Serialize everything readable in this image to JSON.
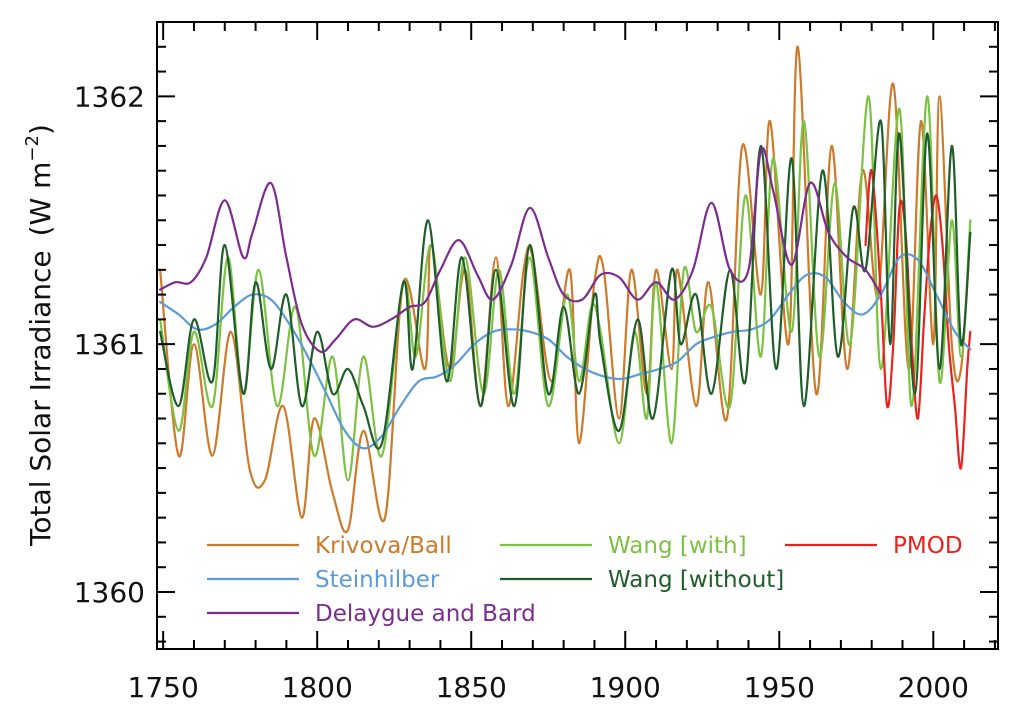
{
  "chart_data": {
    "type": "line",
    "title": "",
    "xlabel": "",
    "ylabel": "Total Solar Irradiance",
    "ylabel_unit_base": "(W m",
    "ylabel_unit_exp": "−2",
    "ylabel_unit_close": ")",
    "xlim": [
      1748,
      2021
    ],
    "ylim": [
      1359.77,
      1362.3
    ],
    "xticks": [
      1750,
      1800,
      1850,
      1900,
      1950,
      2000
    ],
    "xtick_labels": [
      "1750",
      "1800",
      "1850",
      "1900",
      "1950",
      "2000"
    ],
    "yticks": [
      1360,
      1361,
      1362
    ],
    "ytick_labels": [
      "1360",
      "1361",
      "1362"
    ],
    "grid": false,
    "legend_position": "bottom",
    "series": [
      {
        "name": "Krivova/Ball",
        "color": "#CD7A2A",
        "x": [
          1749,
          1755,
          1760,
          1766,
          1772,
          1778,
          1783,
          1789,
          1795,
          1799,
          1805,
          1810,
          1815,
          1822,
          1828,
          1835,
          1837,
          1843,
          1848,
          1853,
          1858,
          1862,
          1867,
          1870,
          1876,
          1882,
          1885,
          1890,
          1893,
          1898,
          1902,
          1907,
          1910,
          1915,
          1917,
          1923,
          1927,
          1933,
          1938,
          1944,
          1947,
          1953,
          1956,
          1962,
          1967,
          1972,
          1977,
          1982,
          1987,
          1992,
          1996,
          2000,
          2002,
          2006,
          2009,
          2012
        ],
        "y": [
          1361.3,
          1360.55,
          1361.0,
          1360.55,
          1361.05,
          1360.5,
          1360.45,
          1360.75,
          1360.3,
          1360.7,
          1360.4,
          1360.25,
          1360.65,
          1360.3,
          1361.25,
          1360.9,
          1361.4,
          1360.9,
          1361.3,
          1360.75,
          1361.35,
          1360.75,
          1361.3,
          1361.35,
          1360.85,
          1361.3,
          1360.6,
          1361.25,
          1361.3,
          1360.7,
          1361.3,
          1360.8,
          1361.3,
          1360.9,
          1361.3,
          1360.75,
          1361.25,
          1360.7,
          1361.8,
          1361.2,
          1361.9,
          1361.0,
          1362.2,
          1360.8,
          1361.8,
          1360.9,
          1361.7,
          1361.2,
          1362.05,
          1360.9,
          1361.9,
          1361.0,
          1362.0,
          1361.0,
          1360.9,
          1361.45
        ]
      },
      {
        "name": "Wang [with]",
        "color": "#7CC242",
        "x": [
          1749,
          1755,
          1760,
          1766,
          1771,
          1776,
          1781,
          1787,
          1793,
          1799,
          1805,
          1810,
          1815,
          1821,
          1828,
          1832,
          1837,
          1843,
          1848,
          1854,
          1859,
          1864,
          1869,
          1875,
          1881,
          1885,
          1889,
          1892,
          1898,
          1903,
          1907,
          1910,
          1915,
          1919,
          1923,
          1928,
          1934,
          1939,
          1944,
          1948,
          1954,
          1958,
          1963,
          1968,
          1973,
          1979,
          1983,
          1989,
          1993,
          1998,
          2002,
          2006,
          2009,
          2012
        ],
        "y": [
          1361.1,
          1360.65,
          1361.05,
          1360.75,
          1361.35,
          1360.8,
          1361.3,
          1360.75,
          1361.15,
          1360.55,
          1360.95,
          1360.45,
          1360.95,
          1360.55,
          1361.25,
          1360.95,
          1361.4,
          1360.85,
          1361.35,
          1360.8,
          1361.3,
          1360.8,
          1361.35,
          1360.75,
          1361.2,
          1360.85,
          1361.15,
          1361.05,
          1360.6,
          1361.05,
          1360.7,
          1361.25,
          1360.6,
          1361.3,
          1361.05,
          1361.15,
          1360.75,
          1361.6,
          1360.95,
          1361.75,
          1361.05,
          1361.9,
          1360.95,
          1361.65,
          1361.0,
          1362.0,
          1360.9,
          1361.95,
          1360.75,
          1362.0,
          1360.85,
          1361.5,
          1360.95,
          1361.5
        ]
      },
      {
        "name": "PMOD",
        "color": "#E8231E",
        "x": [
          1978,
          1980,
          1983,
          1985,
          1987,
          1989,
          1991,
          1993,
          1995,
          1997,
          1999,
          2001,
          2003,
          2005,
          2007,
          2009,
          2011,
          2012
        ],
        "y": [
          1361.4,
          1361.7,
          1361.2,
          1360.75,
          1361.0,
          1361.55,
          1361.45,
          1361.0,
          1360.7,
          1361.1,
          1361.45,
          1361.6,
          1361.4,
          1361.0,
          1360.75,
          1360.5,
          1360.9,
          1361.05
        ]
      },
      {
        "name": "Steinhilber",
        "color": "#5C9BD5",
        "x": [
          1749,
          1755,
          1761,
          1767,
          1773,
          1779,
          1785,
          1791,
          1797,
          1803,
          1809,
          1815,
          1821,
          1827,
          1833,
          1839,
          1845,
          1851,
          1857,
          1863,
          1869,
          1875,
          1881,
          1887,
          1893,
          1899,
          1905,
          1911,
          1917,
          1923,
          1929,
          1935,
          1941,
          1947,
          1953,
          1959,
          1965,
          1971,
          1977,
          1983,
          1989,
          1995,
          2001,
          2007,
          2012
        ],
        "y": [
          1361.17,
          1361.12,
          1361.06,
          1361.08,
          1361.15,
          1361.2,
          1361.18,
          1361.08,
          1360.95,
          1360.8,
          1360.65,
          1360.58,
          1360.63,
          1360.75,
          1360.85,
          1360.87,
          1360.92,
          1361.0,
          1361.05,
          1361.06,
          1361.05,
          1361.02,
          1360.95,
          1360.9,
          1360.87,
          1360.86,
          1360.88,
          1360.9,
          1360.93,
          1361.0,
          1361.03,
          1361.05,
          1361.06,
          1361.1,
          1361.2,
          1361.28,
          1361.27,
          1361.17,
          1361.12,
          1361.2,
          1361.35,
          1361.34,
          1361.2,
          1361.05,
          1360.98
        ]
      },
      {
        "name": "Wang [without]",
        "color": "#1F5E2A",
        "x": [
          1749,
          1755,
          1760,
          1766,
          1770,
          1776,
          1780,
          1785,
          1790,
          1795,
          1800,
          1805,
          1810,
          1815,
          1821,
          1828,
          1831,
          1836,
          1842,
          1847,
          1853,
          1858,
          1864,
          1869,
          1875,
          1880,
          1885,
          1890,
          1892,
          1898,
          1904,
          1909,
          1915,
          1918,
          1923,
          1928,
          1934,
          1939,
          1944,
          1949,
          1954,
          1958,
          1964,
          1969,
          1974,
          1978,
          1983,
          1986,
          1989,
          1994,
          1998,
          2002,
          2006,
          2009,
          2012
        ],
        "y": [
          1361.05,
          1360.75,
          1361.1,
          1360.85,
          1361.4,
          1360.8,
          1361.25,
          1360.9,
          1361.2,
          1360.75,
          1361.05,
          1360.8,
          1360.9,
          1360.75,
          1360.6,
          1361.25,
          1360.9,
          1361.5,
          1360.85,
          1361.35,
          1360.75,
          1361.3,
          1360.75,
          1361.4,
          1360.8,
          1361.15,
          1360.8,
          1361.2,
          1361.0,
          1360.65,
          1361.1,
          1360.7,
          1361.3,
          1361.0,
          1361.2,
          1360.8,
          1361.3,
          1360.85,
          1361.8,
          1360.9,
          1361.75,
          1360.75,
          1361.7,
          1360.95,
          1361.55,
          1361.3,
          1361.9,
          1361.0,
          1361.85,
          1360.8,
          1361.85,
          1360.9,
          1361.8,
          1361.0,
          1361.45
        ]
      },
      {
        "name": "Delaygue and Bard",
        "color": "#7B2D8E",
        "x": [
          1749,
          1754,
          1759,
          1764,
          1770,
          1776,
          1779,
          1785,
          1790,
          1795,
          1801,
          1806,
          1812,
          1818,
          1824,
          1830,
          1835,
          1840,
          1846,
          1852,
          1857,
          1863,
          1869,
          1875,
          1880,
          1886,
          1892,
          1898,
          1904,
          1910,
          1916,
          1922,
          1928,
          1934,
          1940,
          1944,
          1948,
          1954,
          1960,
          1966,
          1972,
          1978,
          1983
        ],
        "y": [
          1361.22,
          1361.25,
          1361.25,
          1361.35,
          1361.58,
          1361.35,
          1361.45,
          1361.65,
          1361.35,
          1361.08,
          1360.97,
          1361.02,
          1361.1,
          1361.07,
          1361.1,
          1361.15,
          1361.17,
          1361.3,
          1361.42,
          1361.28,
          1361.18,
          1361.32,
          1361.55,
          1361.35,
          1361.2,
          1361.18,
          1361.28,
          1361.27,
          1361.18,
          1361.25,
          1361.18,
          1361.3,
          1361.57,
          1361.3,
          1361.3,
          1361.78,
          1361.62,
          1361.32,
          1361.65,
          1361.45,
          1361.35,
          1361.3,
          1361.2
        ]
      }
    ],
    "legend": [
      {
        "label": "Krivova/Ball",
        "color": "#CD7A2A",
        "row": 0,
        "col": 0
      },
      {
        "label": "Wang [with]",
        "color": "#7CC242",
        "row": 0,
        "col": 1
      },
      {
        "label": "PMOD",
        "color": "#E8231E",
        "row": 0,
        "col": 2
      },
      {
        "label": "Steinhilber",
        "color": "#5C9BD5",
        "row": 1,
        "col": 0
      },
      {
        "label": "Wang [without]",
        "color": "#1F5E2A",
        "row": 1,
        "col": 1
      },
      {
        "label": "Delaygue and Bard",
        "color": "#7B2D8E",
        "row": 2,
        "col": 0
      }
    ]
  }
}
